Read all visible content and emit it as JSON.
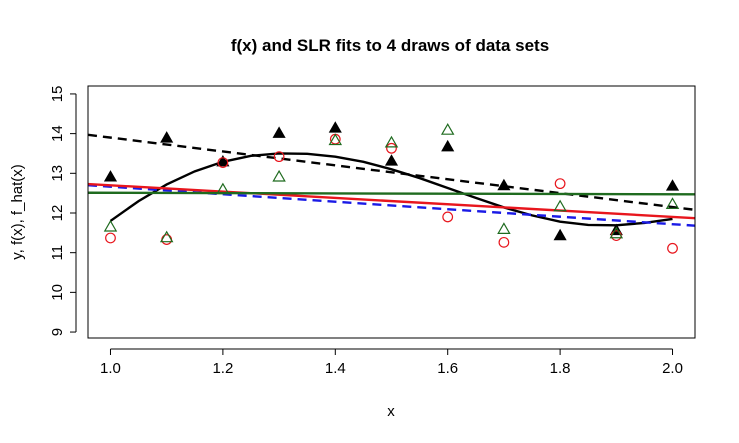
{
  "chart_data": {
    "type": "scatter",
    "title": "f(x) and SLR fits to 4 draws of data sets",
    "xlabel": "x",
    "ylabel": "y,  f(x),  f_hat(x)",
    "xlim": [
      0.96,
      2.04
    ],
    "ylim": [
      8.85,
      15.2
    ],
    "xticks": [
      "1.0",
      "1.2",
      "1.4",
      "1.6",
      "1.8",
      "2.0"
    ],
    "xtick_values": [
      1.0,
      1.2,
      1.4,
      1.6,
      1.8,
      2.0
    ],
    "yticks": [
      "9",
      "10",
      "11",
      "12",
      "13",
      "14",
      "15"
    ],
    "ytick_values": [
      9,
      10,
      11,
      12,
      13,
      14,
      15
    ],
    "grid": false,
    "scatter_series": [
      {
        "marker": "filled-triangle",
        "color": "#000000",
        "x": [
          1.0,
          1.1,
          1.2,
          1.3,
          1.4,
          1.5,
          1.6,
          1.7,
          1.8,
          1.9,
          2.0
        ],
        "y": [
          12.9,
          13.88,
          13.28,
          14.0,
          14.13,
          13.3,
          13.66,
          12.68,
          11.42,
          11.55,
          12.67
        ]
      },
      {
        "marker": "open-circle",
        "color": "#e8161d",
        "x": [
          1.0,
          1.1,
          1.2,
          1.3,
          1.4,
          1.5,
          1.6,
          1.7,
          1.8,
          1.9,
          2.0
        ],
        "y": [
          11.37,
          11.33,
          13.27,
          13.42,
          13.86,
          13.63,
          11.9,
          11.26,
          12.74,
          11.43,
          11.11
        ]
      },
      {
        "marker": "open-triangle",
        "color": "#1f6b1f",
        "x": [
          1.0,
          1.1,
          1.2,
          1.3,
          1.4,
          1.5,
          1.6,
          1.7,
          1.8,
          1.9,
          2.0
        ],
        "y": [
          11.64,
          11.37,
          12.58,
          12.9,
          13.82,
          13.76,
          14.08,
          11.58,
          12.15,
          11.47,
          12.21
        ]
      }
    ],
    "line_series": [
      {
        "style": "solid",
        "color": "#000000",
        "width": 2.4,
        "x": [
          1.0,
          1.05,
          1.1,
          1.15,
          1.2,
          1.25,
          1.3,
          1.35,
          1.4,
          1.45,
          1.5,
          1.55,
          1.6,
          1.65,
          1.7,
          1.75,
          1.8,
          1.85,
          1.9,
          1.95,
          2.0
        ],
        "y": [
          11.8,
          12.3,
          12.72,
          13.05,
          13.29,
          13.44,
          13.5,
          13.49,
          13.42,
          13.29,
          13.1,
          12.88,
          12.63,
          12.38,
          12.14,
          11.94,
          11.78,
          11.7,
          11.69,
          11.75,
          11.85
        ]
      },
      {
        "style": "dashed",
        "color": "#000000",
        "width": 2.4,
        "x": [
          0.96,
          2.04
        ],
        "y": [
          13.97,
          12.08
        ]
      },
      {
        "style": "dashed",
        "color": "#1a1ae6",
        "width": 2.4,
        "x": [
          0.96,
          2.04
        ],
        "y": [
          12.7,
          11.68
        ]
      },
      {
        "style": "solid",
        "color": "#e8161d",
        "width": 2.4,
        "x": [
          0.96,
          2.04
        ],
        "y": [
          12.73,
          11.87
        ]
      },
      {
        "style": "solid",
        "color": "#1f6b1f",
        "width": 2.4,
        "x": [
          0.96,
          2.04
        ],
        "y": [
          12.51,
          12.47
        ]
      }
    ]
  }
}
